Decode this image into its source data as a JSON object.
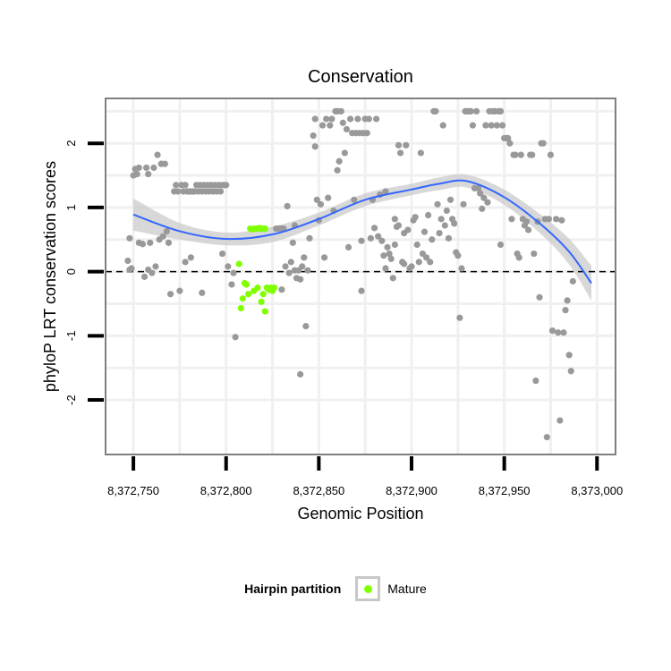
{
  "chart_data": {
    "type": "scatter",
    "title": "Conservation",
    "xlabel": "Genomic Position",
    "ylabel": "phyloP LRT conservation scores",
    "xlim": [
      8372735,
      8373010
    ],
    "ylim": [
      -2.85,
      2.7
    ],
    "x_ticks": [
      8372750,
      8372800,
      8372850,
      8372900,
      8372950,
      8373000
    ],
    "x_tick_labels": [
      "8,372,750",
      "8,372,800",
      "8,372,850",
      "8,372,900",
      "8,372,950",
      "8,373,000"
    ],
    "y_ticks": [
      -2,
      -1,
      0,
      1,
      2
    ],
    "y_tick_labels": [
      "-2",
      "-1",
      "0",
      "1",
      "2"
    ],
    "reference_line_y": 0,
    "grid": true,
    "legend_position": "bottom",
    "legend_title": "Hairpin partition",
    "colors": {
      "other": "#999999",
      "mature": "#7fff00",
      "smooth": "#3366ff",
      "ribbon": "#c8c8c8",
      "panel_border": "#7f7f7f",
      "grid": "#f0f0f0"
    },
    "series": [
      {
        "name": "Mature",
        "points": [
          [
            8372807,
            0.12
          ],
          [
            8372808,
            -0.57
          ],
          [
            8372809,
            -0.42
          ],
          [
            8372810,
            -0.18
          ],
          [
            8372811,
            -0.2
          ],
          [
            8372812,
            -0.35
          ],
          [
            8372813,
            0.67
          ],
          [
            8372814,
            0.66
          ],
          [
            8372815,
            0.67
          ],
          [
            8372815,
            -0.3
          ],
          [
            8372816,
            0.67
          ],
          [
            8372817,
            0.67
          ],
          [
            8372817,
            -0.25
          ],
          [
            8372818,
            0.68
          ],
          [
            8372819,
            0.67
          ],
          [
            8372819,
            -0.47
          ],
          [
            8372820,
            0.67
          ],
          [
            8372820,
            -0.35
          ],
          [
            8372821,
            0.67
          ],
          [
            8372821,
            -0.62
          ],
          [
            8372822,
            -0.25
          ],
          [
            8372823,
            -0.28
          ],
          [
            8372824,
            -0.25
          ],
          [
            8372825,
            -0.3
          ],
          [
            8372826,
            -0.25
          ]
        ]
      },
      {
        "points": [
          [
            8372747,
            0.17
          ],
          [
            8372748,
            0.52
          ],
          [
            8372748,
            0.03
          ],
          [
            8372749,
            0.05
          ],
          [
            8372750,
            1.5
          ],
          [
            8372751,
            1.6
          ],
          [
            8372752,
            1.52
          ],
          [
            8372753,
            1.62
          ],
          [
            8372753,
            0.45
          ],
          [
            8372755,
            0.43
          ],
          [
            8372756,
            -0.08
          ],
          [
            8372757,
            1.62
          ],
          [
            8372758,
            1.52
          ],
          [
            8372758,
            0.03
          ],
          [
            8372759,
            0.45
          ],
          [
            8372760,
            -0.02
          ],
          [
            8372761,
            1.62
          ],
          [
            8372762,
            0.08
          ],
          [
            8372763,
            1.82
          ],
          [
            8372764,
            0.5
          ],
          [
            8372765,
            1.68
          ],
          [
            8372766,
            0.55
          ],
          [
            8372767,
            1.68
          ],
          [
            8372768,
            0.63
          ],
          [
            8372769,
            0.45
          ],
          [
            8372770,
            -0.35
          ],
          [
            8372772,
            1.25
          ],
          [
            8372773,
            1.35
          ],
          [
            8372774,
            1.25
          ],
          [
            8372775,
            -0.3
          ],
          [
            8372776,
            1.35
          ],
          [
            8372777,
            1.25
          ],
          [
            8372778,
            0.15
          ],
          [
            8372778,
            1.35
          ],
          [
            8372779,
            1.25
          ],
          [
            8372780,
            1.25
          ],
          [
            8372781,
            0.22
          ],
          [
            8372781,
            1.25
          ],
          [
            8372782,
            1.25
          ],
          [
            8372783,
            1.25
          ],
          [
            8372784,
            1.35
          ],
          [
            8372785,
            1.25
          ],
          [
            8372786,
            1.35
          ],
          [
            8372787,
            -0.33
          ],
          [
            8372787,
            1.25
          ],
          [
            8372788,
            1.35
          ],
          [
            8372789,
            1.25
          ],
          [
            8372790,
            1.35
          ],
          [
            8372791,
            1.25
          ],
          [
            8372792,
            1.35
          ],
          [
            8372793,
            1.25
          ],
          [
            8372794,
            1.35
          ],
          [
            8372795,
            1.25
          ],
          [
            8372796,
            1.35
          ],
          [
            8372797,
            1.25
          ],
          [
            8372798,
            0.28
          ],
          [
            8372798,
            1.35
          ],
          [
            8372799,
            1.35
          ],
          [
            8372800,
            1.35
          ],
          [
            8372801,
            0.08
          ],
          [
            8372803,
            -0.2
          ],
          [
            8372804,
            -0.02
          ],
          [
            8372805,
            -1.02
          ],
          [
            8372827,
            0.67
          ],
          [
            8372828,
            0.67
          ],
          [
            8372829,
            0.67
          ],
          [
            8372830,
            0.67
          ],
          [
            8372830,
            -0.28
          ],
          [
            8372831,
            0.67
          ],
          [
            8372832,
            0.08
          ],
          [
            8372833,
            1.02
          ],
          [
            8372834,
            -0.02
          ],
          [
            8372835,
            0.15
          ],
          [
            8372836,
            0.45
          ],
          [
            8372837,
            0.72
          ],
          [
            8372837,
            0.02
          ],
          [
            8372838,
            -0.1
          ],
          [
            8372839,
            0.02
          ],
          [
            8372840,
            -1.6
          ],
          [
            8372840,
            -0.12
          ],
          [
            8372841,
            0.08
          ],
          [
            8372842,
            0.22
          ],
          [
            8372843,
            -0.85
          ],
          [
            8372844,
            0.02
          ],
          [
            8372845,
            0.52
          ],
          [
            8372847,
            2.12
          ],
          [
            8372848,
            2.38
          ],
          [
            8372848,
            1.95
          ],
          [
            8372849,
            1.12
          ],
          [
            8372850,
            0.8
          ],
          [
            8372851,
            1.05
          ],
          [
            8372852,
            2.28
          ],
          [
            8372853,
            0.22
          ],
          [
            8372854,
            2.38
          ],
          [
            8372855,
            1.15
          ],
          [
            8372856,
            2.28
          ],
          [
            8372857,
            2.38
          ],
          [
            8372858,
            0.95
          ],
          [
            8372859,
            2.5
          ],
          [
            8372860,
            2.5
          ],
          [
            8372860,
            1.58
          ],
          [
            8372861,
            1.72
          ],
          [
            8372862,
            2.5
          ],
          [
            8372863,
            2.32
          ],
          [
            8372864,
            1.85
          ],
          [
            8372865,
            2.22
          ],
          [
            8372866,
            0.38
          ],
          [
            8372867,
            2.38
          ],
          [
            8372868,
            2.16
          ],
          [
            8372869,
            1.12
          ],
          [
            8372870,
            2.16
          ],
          [
            8372871,
            2.38
          ],
          [
            8372872,
            2.16
          ],
          [
            8372873,
            0.48
          ],
          [
            8372873,
            -0.3
          ],
          [
            8372874,
            2.16
          ],
          [
            8372875,
            2.38
          ],
          [
            8372876,
            2.16
          ],
          [
            8372877,
            2.38
          ],
          [
            8372878,
            0.52
          ],
          [
            8372879,
            1.12
          ],
          [
            8372880,
            0.68
          ],
          [
            8372881,
            2.38
          ],
          [
            8372882,
            0.55
          ],
          [
            8372883,
            1.2
          ],
          [
            8372884,
            0.48
          ],
          [
            8372885,
            0.25
          ],
          [
            8372886,
            1.25
          ],
          [
            8372886,
            0.05
          ],
          [
            8372887,
            0.38
          ],
          [
            8372888,
            0.28
          ],
          [
            8372889,
            0.2
          ],
          [
            8372890,
            -0.1
          ],
          [
            8372891,
            0.82
          ],
          [
            8372891,
            0.42
          ],
          [
            8372892,
            0.7
          ],
          [
            8372893,
            1.97
          ],
          [
            8372893,
            0.72
          ],
          [
            8372894,
            1.85
          ],
          [
            8372895,
            0.15
          ],
          [
            8372896,
            0.6
          ],
          [
            8372896,
            0.12
          ],
          [
            8372897,
            1.97
          ],
          [
            8372898,
            0.65
          ],
          [
            8372899,
            0.05
          ],
          [
            8372900,
            0.08
          ],
          [
            8372901,
            0.8
          ],
          [
            8372902,
            0.85
          ],
          [
            8372903,
            0.42
          ],
          [
            8372904,
            0.15
          ],
          [
            8372905,
            1.85
          ],
          [
            8372906,
            0.28
          ],
          [
            8372907,
            0.62
          ],
          [
            8372908,
            0.22
          ],
          [
            8372909,
            0.88
          ],
          [
            8372910,
            0.15
          ],
          [
            8372911,
            0.5
          ],
          [
            8372912,
            2.5
          ],
          [
            8372913,
            2.5
          ],
          [
            8372914,
            1.05
          ],
          [
            8372915,
            0.6
          ],
          [
            8372916,
            0.82
          ],
          [
            8372917,
            2.28
          ],
          [
            8372918,
            0.72
          ],
          [
            8372919,
            0.95
          ],
          [
            8372920,
            0.52
          ],
          [
            8372921,
            1.12
          ],
          [
            8372922,
            0.82
          ],
          [
            8372923,
            0.75
          ],
          [
            8372924,
            0.3
          ],
          [
            8372925,
            0.25
          ],
          [
            8372926,
            -0.72
          ],
          [
            8372927,
            0.05
          ],
          [
            8372928,
            1.05
          ],
          [
            8372929,
            2.5
          ],
          [
            8372930,
            2.5
          ],
          [
            8372931,
            2.5
          ],
          [
            8372932,
            2.5
          ],
          [
            8372933,
            2.28
          ],
          [
            8372934,
            1.3
          ],
          [
            8372935,
            2.5
          ],
          [
            8372936,
            1.3
          ],
          [
            8372937,
            1.22
          ],
          [
            8372938,
            0.98
          ],
          [
            8372939,
            1.15
          ],
          [
            8372940,
            2.28
          ],
          [
            8372941,
            1.08
          ],
          [
            8372942,
            2.5
          ],
          [
            8372943,
            2.28
          ],
          [
            8372944,
            2.5
          ],
          [
            8372945,
            2.5
          ],
          [
            8372946,
            2.28
          ],
          [
            8372947,
            2.5
          ],
          [
            8372948,
            2.5
          ],
          [
            8372948,
            0.42
          ],
          [
            8372949,
            2.28
          ],
          [
            8372950,
            2.08
          ],
          [
            8372951,
            2.08
          ],
          [
            8372952,
            2.08
          ],
          [
            8372953,
            2.0
          ],
          [
            8372954,
            0.82
          ],
          [
            8372955,
            1.82
          ],
          [
            8372956,
            1.82
          ],
          [
            8372957,
            0.28
          ],
          [
            8372958,
            0.22
          ],
          [
            8372959,
            1.82
          ],
          [
            8372960,
            0.82
          ],
          [
            8372961,
            0.72
          ],
          [
            8372962,
            0.78
          ],
          [
            8372963,
            0.65
          ],
          [
            8372964,
            1.82
          ],
          [
            8372965,
            1.82
          ],
          [
            8372966,
            0.28
          ],
          [
            8372967,
            -1.7
          ],
          [
            8372968,
            0.78
          ],
          [
            8372969,
            -0.4
          ],
          [
            8372970,
            2.0
          ],
          [
            8372971,
            2.0
          ],
          [
            8372972,
            0.82
          ],
          [
            8372973,
            -2.58
          ],
          [
            8372974,
            0.82
          ],
          [
            8372975,
            1.82
          ],
          [
            8372976,
            -0.92
          ],
          [
            8372978,
            0.82
          ],
          [
            8372979,
            -0.95
          ],
          [
            8372980,
            -2.32
          ],
          [
            8372981,
            0.8
          ],
          [
            8372982,
            -0.95
          ],
          [
            8372983,
            -0.6
          ],
          [
            8372984,
            -0.45
          ],
          [
            8372985,
            -1.3
          ],
          [
            8372986,
            -1.55
          ],
          [
            8372987,
            -0.15
          ]
        ]
      }
    ],
    "smooth_line": {
      "x": [
        8372750,
        8372775,
        8372800,
        8372825,
        8372850,
        8372875,
        8372900,
        8372915,
        8372930,
        8372950,
        8372970,
        8372985,
        8372997
      ],
      "y": [
        0.89,
        0.63,
        0.51,
        0.58,
        0.82,
        1.12,
        1.28,
        1.37,
        1.41,
        1.16,
        0.73,
        0.31,
        -0.18
      ],
      "se": [
        0.25,
        0.13,
        0.1,
        0.12,
        0.1,
        0.1,
        0.09,
        0.1,
        0.1,
        0.12,
        0.15,
        0.2,
        0.27
      ]
    }
  }
}
